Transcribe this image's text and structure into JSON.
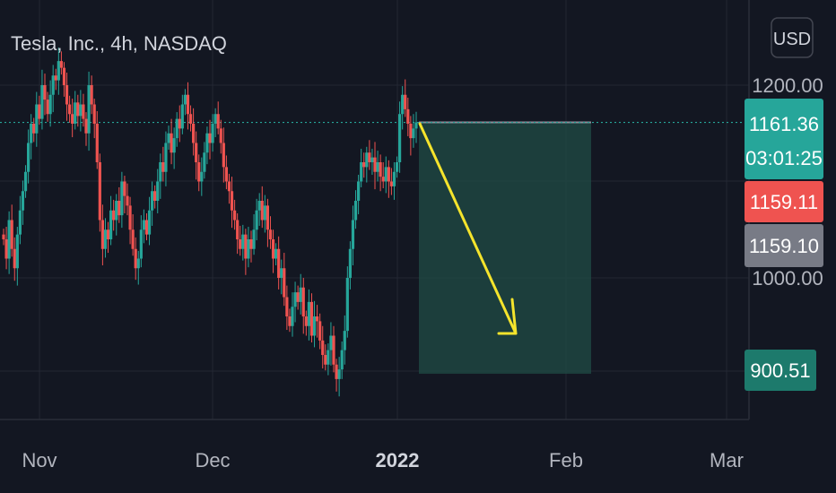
{
  "header": {
    "title": "Tesla, Inc., 4h, NASDAQ",
    "currency_button": "USD"
  },
  "price_labels": {
    "current_price": "1161.36",
    "countdown": "03:01:25",
    "red_marker": "1159.11",
    "gray_marker": "1159.10",
    "target_marker": "900.51"
  },
  "colors": {
    "background": "#131722",
    "grid": "#232733",
    "up": "#26a69a",
    "down": "#ef5350",
    "arrow": "#f5e42c",
    "short_zone": "#1f4844",
    "gray_marker": "#787b86"
  },
  "chart_data": {
    "type": "candlestick",
    "title": "Tesla, Inc., 4h, NASDAQ",
    "x_ticks": [
      "Nov",
      "Dec",
      "2022",
      "Feb",
      "Mar"
    ],
    "y_ticks": [
      "1200.00",
      "1000.00"
    ],
    "ylim": [
      880,
      1245
    ],
    "current_price": 1161.36,
    "short_position": {
      "entry": 1161.36,
      "target": 900.51
    },
    "closes": [
      1040,
      1020,
      1060,
      1030,
      1010,
      1045,
      1070,
      1090,
      1110,
      1140,
      1160,
      1150,
      1180,
      1165,
      1200,
      1185,
      1170,
      1190,
      1210,
      1205,
      1225,
      1218,
      1200,
      1180,
      1170,
      1160,
      1182,
      1168,
      1180,
      1165,
      1150,
      1200,
      1180,
      1160,
      1120,
      1060,
      1030,
      1050,
      1040,
      1070,
      1060,
      1080,
      1065,
      1100,
      1085,
      1075,
      1050,
      1030,
      1010,
      1020,
      1050,
      1060,
      1045,
      1070,
      1090,
      1080,
      1100,
      1120,
      1110,
      1140,
      1150,
      1130,
      1145,
      1165,
      1155,
      1180,
      1190,
      1170,
      1160,
      1140,
      1120,
      1100,
      1110,
      1130,
      1150,
      1140,
      1160,
      1170,
      1155,
      1140,
      1115,
      1100,
      1090,
      1070,
      1060,
      1040,
      1030,
      1045,
      1020,
      1040,
      1030,
      1050,
      1070,
      1080,
      1060,
      1075,
      1050,
      1040,
      1020,
      1030,
      1000,
      1010,
      980,
      960,
      950,
      970,
      985,
      975,
      990,
      960,
      950,
      975,
      940,
      960,
      955,
      935,
      920,
      910,
      925,
      940,
      910,
      895,
      905,
      925,
      945,
      1000,
      1030,
      1060,
      1080,
      1100,
      1120,
      1115,
      1130,
      1120,
      1125,
      1110,
      1120,
      1105,
      1100,
      1115,
      1100,
      1095,
      1110,
      1120,
      1170,
      1190,
      1175,
      1160,
      1145,
      1155,
      1161.36
    ]
  }
}
